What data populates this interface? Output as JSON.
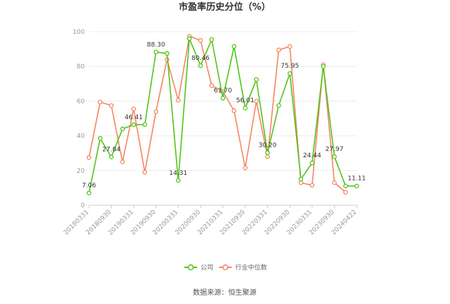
{
  "chart_data": {
    "type": "line",
    "title": "市盈率历史分位（%）",
    "ylim": [
      0,
      100
    ],
    "yticks": [
      0,
      20,
      40,
      60,
      80,
      100
    ],
    "grid": true,
    "legend_position": "bottom-center",
    "x_tick_labels": [
      "20180331",
      "20180930",
      "20190331",
      "20190930",
      "20200331",
      "20200930",
      "20210331",
      "20210930",
      "20220331",
      "20220930",
      "20230331",
      "20230930",
      "20240422"
    ],
    "series": [
      {
        "name": "公司",
        "color": "#52c41a",
        "values": [
          7.06,
          38.5,
          27.84,
          44.0,
          46.41,
          46.5,
          88.3,
          87.5,
          14.31,
          96.0,
          80.46,
          95.5,
          61.7,
          91.5,
          56.01,
          72.5,
          30.2,
          57.5,
          75.95,
          15.0,
          24.44,
          80.0,
          27.97,
          11.11,
          11.11
        ],
        "labels": {
          "0": "7.06",
          "2": "27.84",
          "4": "46.41",
          "6": "88.30",
          "8": "14.31",
          "10": "80.46",
          "12": "61.70",
          "14": "56.01",
          "16": "30.20",
          "18": "75.95",
          "20": "24.44",
          "22": "27.97",
          "24": "11.11"
        }
      },
      {
        "name": "行业中位数",
        "color": "#f4875f",
        "values": [
          27.5,
          59.5,
          57.5,
          25.0,
          55.5,
          19.0,
          54.0,
          84.0,
          60.5,
          97.5,
          95.0,
          69.0,
          65.5,
          54.5,
          21.5,
          60.0,
          28.0,
          89.5,
          91.5,
          13.0,
          11.5,
          81.0,
          13.0,
          7.5,
          null
        ]
      }
    ]
  },
  "legend": {
    "company": "公司",
    "industry": "行业中位数"
  },
  "footer": {
    "source": "数据来源：恒生聚源"
  }
}
